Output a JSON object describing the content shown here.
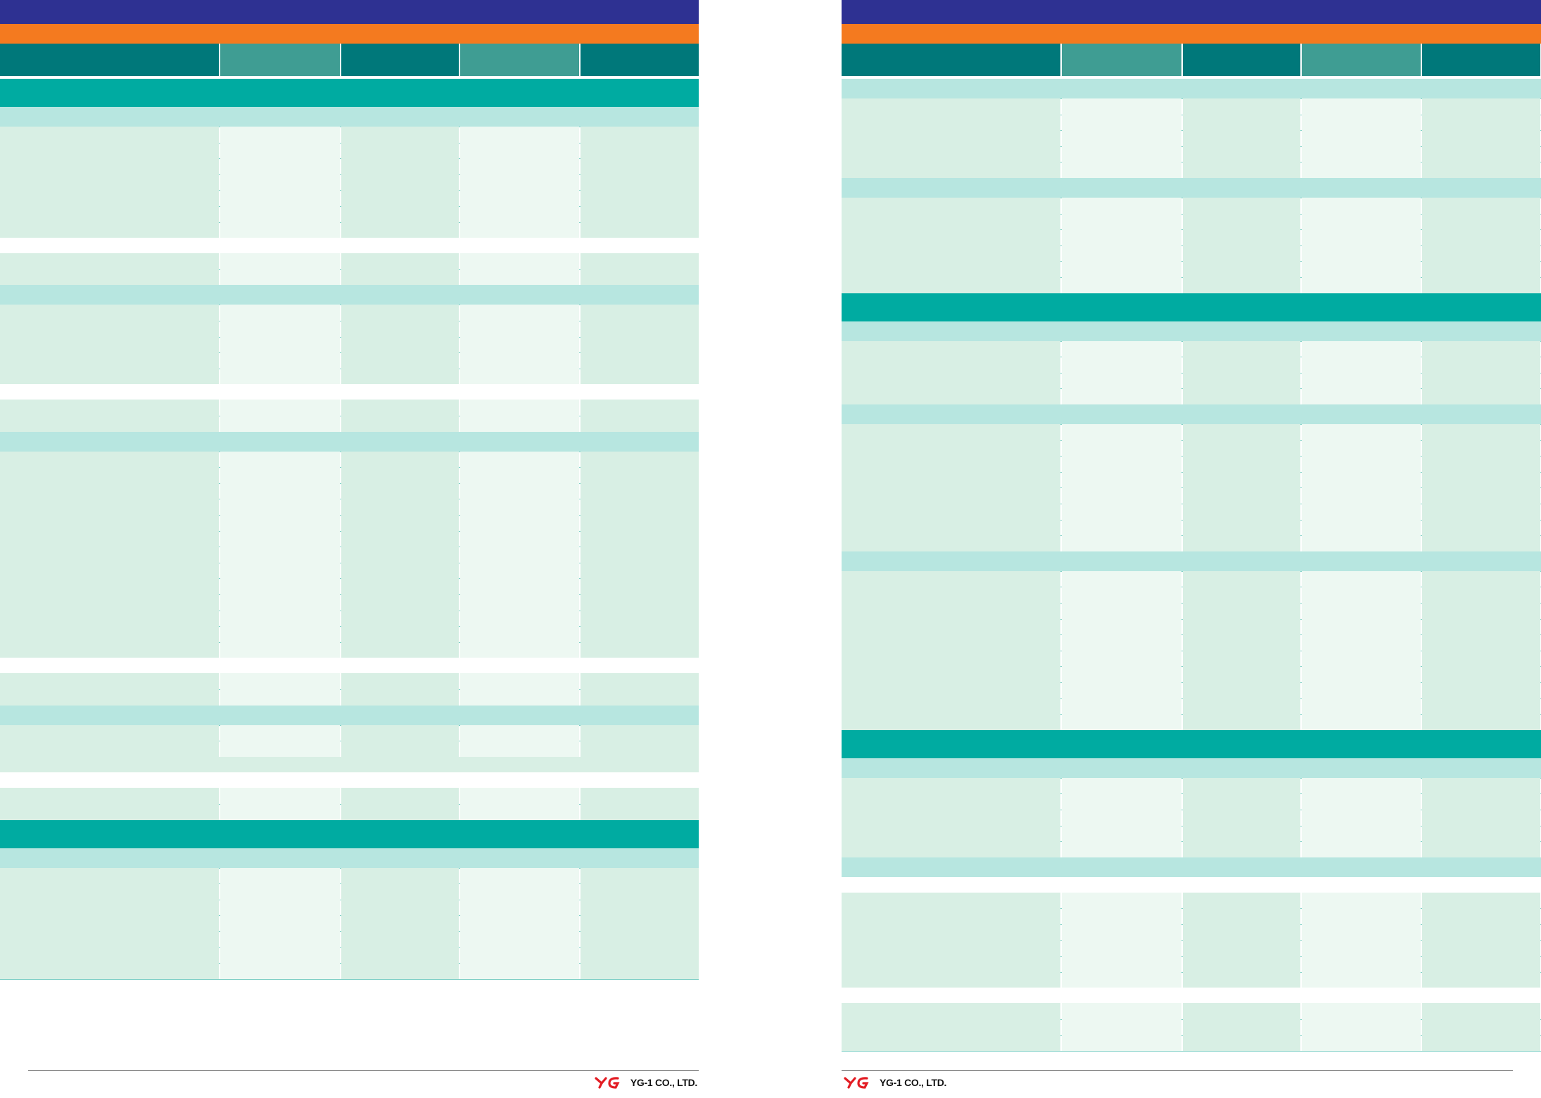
{
  "colors": {
    "purple": "#2e3192",
    "orange": "#f47a1f",
    "header_dark": "#00787a",
    "header_light": "#3f9d93",
    "section_teal": "#00aba1",
    "subheader": "#b7e6e0",
    "cell_dark": "#d8efe4",
    "cell_light": "#edf8f2",
    "grid_line": "#7fd0c6",
    "logo_red": "#e31d24"
  },
  "footer": {
    "company": "YG-1 CO., LTD.",
    "logo_mark": "YG"
  },
  "left_page": {
    "rows": [
      "section",
      "sub",
      "data",
      "data",
      "data",
      "data",
      "data",
      "data",
      "data",
      "gap",
      "data",
      "data",
      "sub",
      "data",
      "data",
      "data",
      "data",
      "data",
      "gap",
      "data",
      "data",
      "sub",
      "data",
      "data",
      "data",
      "data",
      "data",
      "data",
      "data",
      "data",
      "data",
      "data",
      "data",
      "data",
      "data",
      "gap",
      "data",
      "data",
      "sub",
      "data",
      "data",
      "full",
      "gap",
      "data",
      "data",
      "section",
      "sub",
      "data",
      "data",
      "data",
      "data",
      "data",
      "data",
      "data"
    ]
  },
  "right_page": {
    "rows": [
      "sub",
      "data",
      "data",
      "data",
      "data",
      "data",
      "sub",
      "data",
      "data",
      "data",
      "data",
      "data",
      "data",
      "section",
      "sub",
      "data",
      "data",
      "data",
      "data",
      "sub",
      "data",
      "data",
      "data",
      "data",
      "data",
      "data",
      "data",
      "data",
      "sub",
      "data",
      "data",
      "data",
      "data",
      "data",
      "data",
      "data",
      "data",
      "data",
      "data",
      "section",
      "sub",
      "data",
      "data",
      "data",
      "data",
      "data",
      "sub",
      "gap",
      "data",
      "data",
      "data",
      "data",
      "data",
      "data",
      "gap",
      "data",
      "data",
      "data"
    ]
  }
}
